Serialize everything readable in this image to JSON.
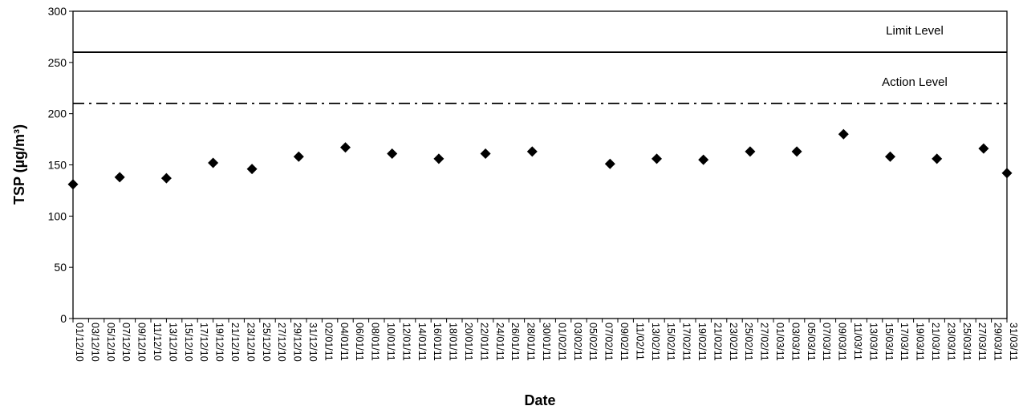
{
  "chart_data": {
    "type": "scatter",
    "title": "",
    "xlabel": "Date",
    "ylabel": "TSP (µg/m³)",
    "ylim": [
      0,
      300
    ],
    "yticks": [
      0,
      50,
      100,
      150,
      200,
      250,
      300
    ],
    "xlim": [
      "01/12/10",
      "31/03/11"
    ],
    "x_tick_labels": [
      "01/12/10",
      "03/12/10",
      "05/12/10",
      "07/12/10",
      "09/12/10",
      "11/12/10",
      "13/12/10",
      "15/12/10",
      "17/12/10",
      "19/12/10",
      "21/12/10",
      "23/12/10",
      "25/12/10",
      "27/12/10",
      "29/12/10",
      "31/12/10",
      "02/01/11",
      "04/01/11",
      "06/01/11",
      "08/01/11",
      "10/01/11",
      "12/01/11",
      "14/01/11",
      "16/01/11",
      "18/01/11",
      "20/01/11",
      "22/01/11",
      "24/01/11",
      "26/01/11",
      "28/01/11",
      "30/01/11",
      "01/02/11",
      "03/02/11",
      "05/02/11",
      "07/02/11",
      "09/02/11",
      "11/02/11",
      "13/02/11",
      "15/02/11",
      "17/02/11",
      "19/02/11",
      "21/02/11",
      "23/02/11",
      "25/02/11",
      "27/02/11",
      "01/03/11",
      "03/03/11",
      "05/03/11",
      "07/03/11",
      "09/03/11",
      "11/03/11",
      "13/03/11",
      "15/03/11",
      "17/03/11",
      "19/03/11",
      "21/03/11",
      "23/03/11",
      "25/03/11",
      "27/03/11",
      "29/03/11",
      "31/03/11"
    ],
    "points": [
      {
        "x": "01/12/10",
        "y": 131
      },
      {
        "x": "07/12/10",
        "y": 138
      },
      {
        "x": "13/12/10",
        "y": 137
      },
      {
        "x": "19/12/10",
        "y": 152
      },
      {
        "x": "24/12/10",
        "y": 146
      },
      {
        "x": "30/12/10",
        "y": 158
      },
      {
        "x": "05/01/11",
        "y": 167
      },
      {
        "x": "11/01/11",
        "y": 161
      },
      {
        "x": "17/01/11",
        "y": 156
      },
      {
        "x": "23/01/11",
        "y": 161
      },
      {
        "x": "29/01/11",
        "y": 163
      },
      {
        "x": "08/02/11",
        "y": 151
      },
      {
        "x": "14/02/11",
        "y": 156
      },
      {
        "x": "20/02/11",
        "y": 155
      },
      {
        "x": "26/02/11",
        "y": 163
      },
      {
        "x": "04/03/11",
        "y": 163
      },
      {
        "x": "10/03/11",
        "y": 180
      },
      {
        "x": "16/03/11",
        "y": 158
      },
      {
        "x": "22/03/11",
        "y": 156
      },
      {
        "x": "28/03/11",
        "y": 166
      },
      {
        "x": "31/03/11",
        "y": 142
      }
    ],
    "reference_lines": [
      {
        "label": "Limit Level",
        "y": 260,
        "style": "solid"
      },
      {
        "label": "Action Level",
        "y": 210,
        "style": "dash-dot"
      }
    ],
    "grid": false,
    "marker": "diamond",
    "marker_color": "#000000"
  }
}
